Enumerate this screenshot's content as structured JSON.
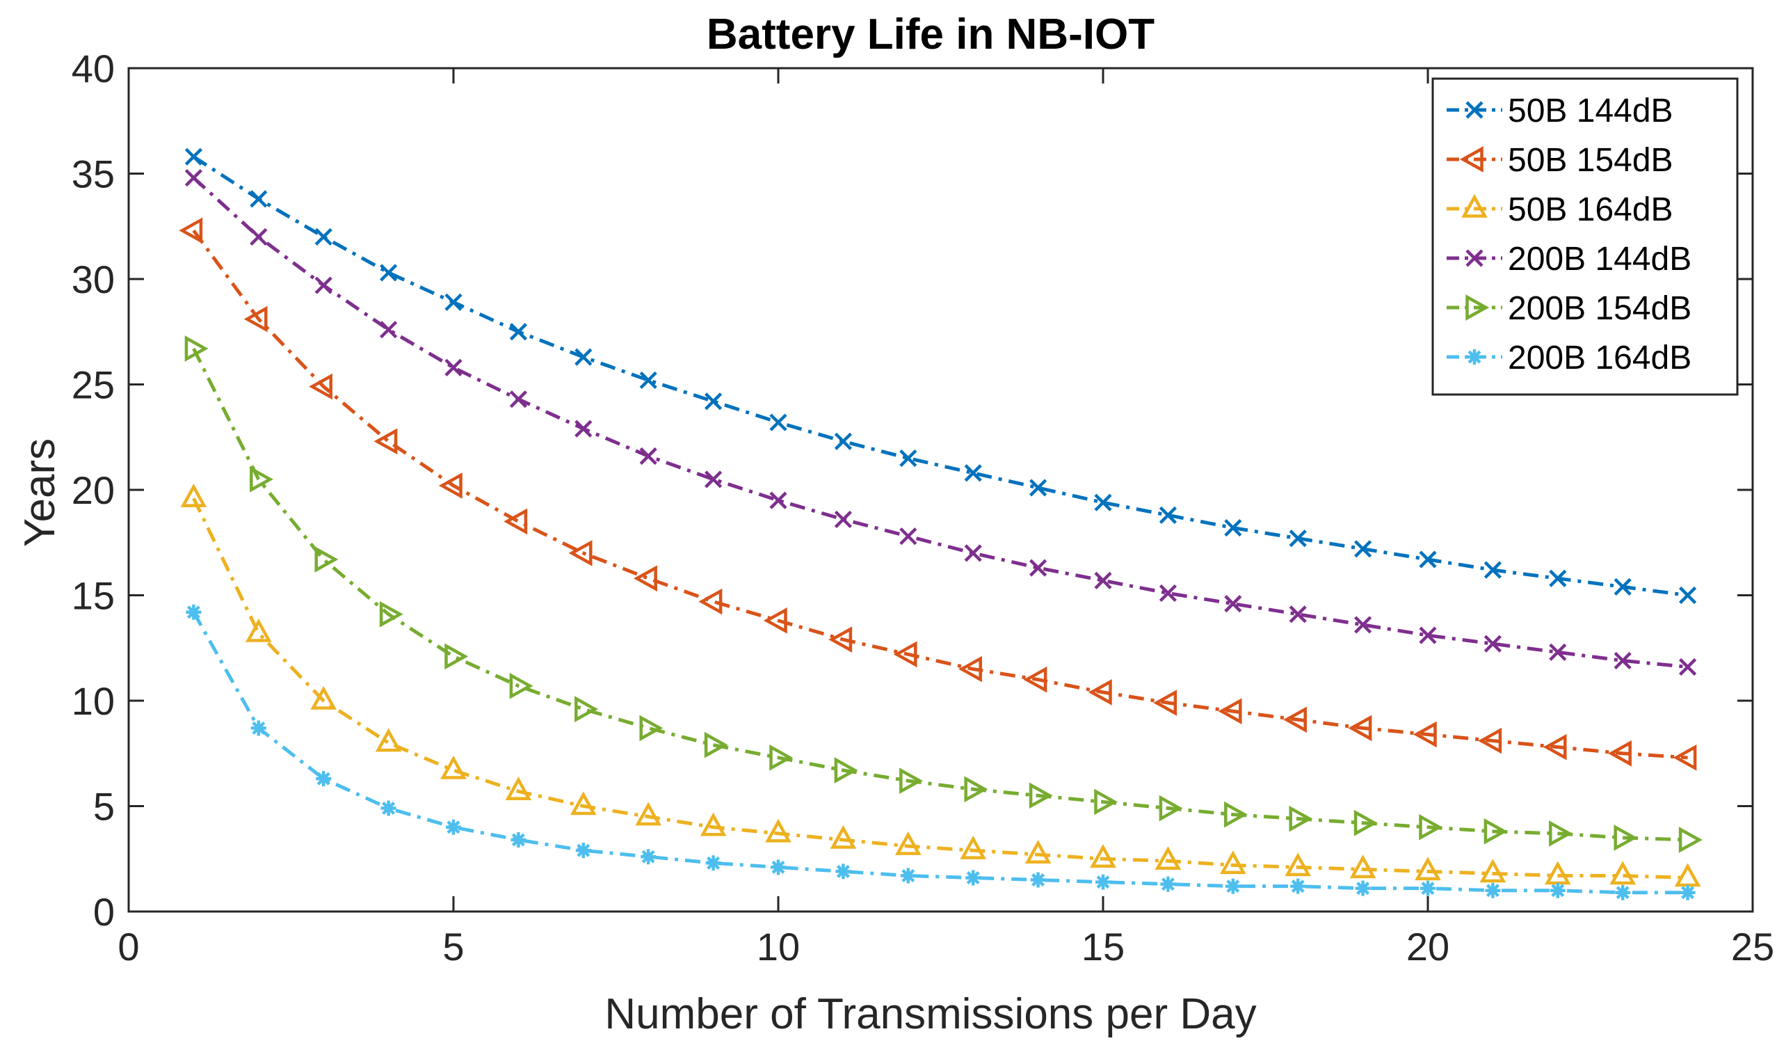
{
  "chart_data": {
    "type": "line",
    "title": "Battery Life in NB-IOT",
    "xlabel": "Number of Transmissions per Day",
    "ylabel": "Years",
    "xlim": [
      0,
      25
    ],
    "ylim": [
      0,
      40
    ],
    "xticks": [
      0,
      5,
      10,
      15,
      20,
      25
    ],
    "yticks": [
      0,
      5,
      10,
      15,
      20,
      25,
      30,
      35,
      40
    ],
    "xtick_labels": [
      "0",
      "5",
      "10",
      "15",
      "20",
      "25"
    ],
    "ytick_labels": [
      "0",
      "5",
      "10",
      "15",
      "20",
      "25",
      "30",
      "35",
      "40"
    ],
    "grid": false,
    "legend_position": "top-right",
    "x": [
      1,
      2,
      3,
      4,
      5,
      6,
      7,
      8,
      9,
      10,
      11,
      12,
      13,
      14,
      15,
      16,
      17,
      18,
      19,
      20,
      21,
      22,
      23,
      24
    ],
    "series": [
      {
        "name": "50B 144dB",
        "color": "#0072BD",
        "marker": "x",
        "values": [
          35.8,
          33.8,
          32.0,
          30.3,
          28.9,
          27.5,
          26.3,
          25.2,
          24.2,
          23.2,
          22.3,
          21.5,
          20.8,
          20.1,
          19.4,
          18.8,
          18.2,
          17.7,
          17.2,
          16.7,
          16.2,
          15.8,
          15.4,
          15.0
        ]
      },
      {
        "name": "50B 154dB",
        "color": "#D95319",
        "marker": "triangle-left",
        "values": [
          32.3,
          28.1,
          24.9,
          22.3,
          20.2,
          18.5,
          17.0,
          15.8,
          14.7,
          13.8,
          12.9,
          12.2,
          11.5,
          11.0,
          10.4,
          9.9,
          9.5,
          9.1,
          8.7,
          8.4,
          8.1,
          7.8,
          7.5,
          7.3
        ]
      },
      {
        "name": "50B 164dB",
        "color": "#EDB120",
        "marker": "triangle-up",
        "values": [
          19.6,
          13.2,
          10.0,
          8.0,
          6.7,
          5.7,
          5.0,
          4.5,
          4.0,
          3.7,
          3.4,
          3.1,
          2.9,
          2.7,
          2.5,
          2.4,
          2.2,
          2.1,
          2.0,
          1.9,
          1.8,
          1.7,
          1.7,
          1.6
        ]
      },
      {
        "name": "200B 144dB",
        "color": "#7E2F8E",
        "marker": "x",
        "values": [
          34.8,
          32.0,
          29.7,
          27.6,
          25.8,
          24.3,
          22.9,
          21.6,
          20.5,
          19.5,
          18.6,
          17.8,
          17.0,
          16.3,
          15.7,
          15.1,
          14.6,
          14.1,
          13.6,
          13.1,
          12.7,
          12.3,
          11.9,
          11.6
        ]
      },
      {
        "name": "200B 154dB",
        "color": "#77AC30",
        "marker": "triangle-right",
        "values": [
          26.7,
          20.5,
          16.7,
          14.1,
          12.1,
          10.7,
          9.6,
          8.7,
          7.9,
          7.3,
          6.7,
          6.2,
          5.8,
          5.5,
          5.2,
          4.9,
          4.6,
          4.4,
          4.2,
          4.0,
          3.8,
          3.7,
          3.5,
          3.4
        ]
      },
      {
        "name": "200B 164dB",
        "color": "#4DBEEE",
        "marker": "asterisk",
        "values": [
          14.2,
          8.7,
          6.3,
          4.9,
          4.0,
          3.4,
          2.9,
          2.6,
          2.3,
          2.1,
          1.9,
          1.7,
          1.6,
          1.5,
          1.4,
          1.3,
          1.2,
          1.2,
          1.1,
          1.1,
          1.0,
          1.0,
          0.9,
          0.9
        ]
      }
    ]
  }
}
